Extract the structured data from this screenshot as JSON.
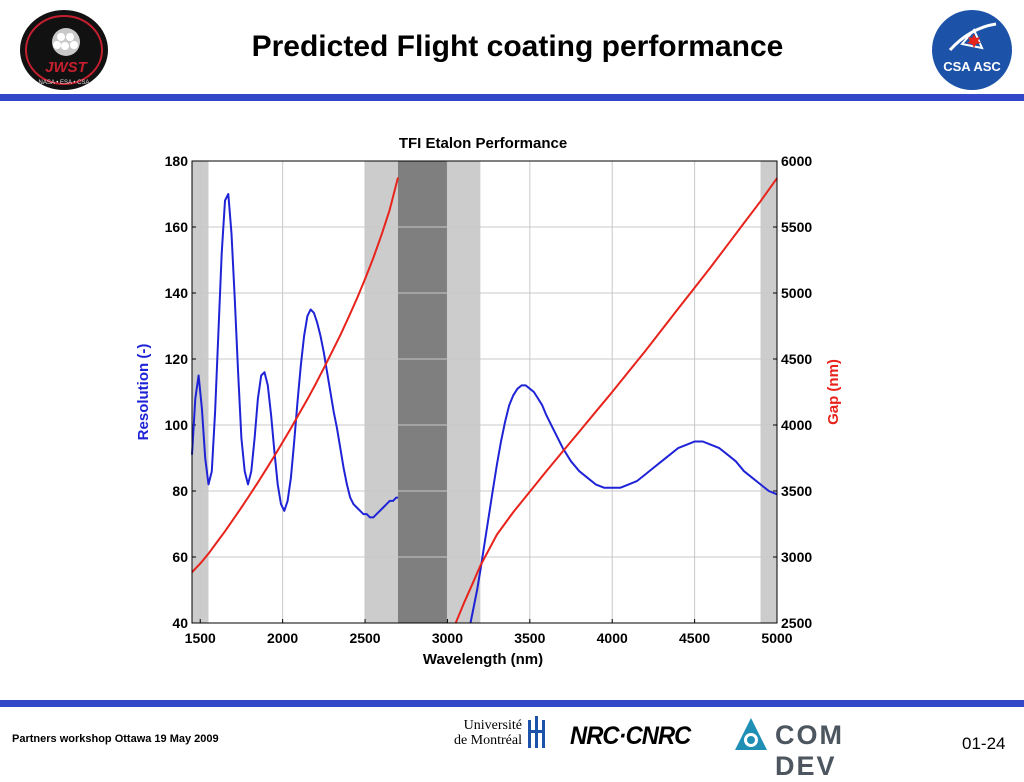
{
  "slide": {
    "title": "Predicted Flight coating performance",
    "footer": "Partners workshop Ottawa 19 May 2009",
    "page_number": "01-24"
  },
  "logos": {
    "jwst": "JWST",
    "jwst_ring": "James Webb Space Telescope",
    "jwst_agencies": "NASA • ESA • CSA",
    "csa": "CSA ASC",
    "udem": [
      "Université",
      "de Montréal"
    ],
    "nrc": "NRC·CNRC",
    "comdev": "COM DEV"
  },
  "colors": {
    "rule": "#3347c9",
    "resolution": "#1f23d6",
    "gap": "#e8231b",
    "band_light": "#cccccc",
    "band_dark": "#7f7f7f",
    "csa_blue": "#1c52a8",
    "jwst_red": "#c61f2f"
  },
  "chart_data": {
    "type": "line",
    "title": "TFI Etalon Performance",
    "xlabel": "Wavelength (nm)",
    "ylabel_left": "Resolution (-)",
    "ylabel_right": "Gap (nm)",
    "xlim": [
      1450,
      5000
    ],
    "ylim_left": [
      40,
      180
    ],
    "ylim_right": [
      2500,
      6000
    ],
    "x_ticks": [
      1500,
      2000,
      2500,
      3000,
      3500,
      4000,
      4500,
      5000
    ],
    "y_ticks_left": [
      40,
      60,
      80,
      100,
      120,
      140,
      160,
      180
    ],
    "y_ticks_right": [
      2500,
      3000,
      3500,
      4000,
      4500,
      5000,
      5500,
      6000
    ],
    "grid": true,
    "shaded_bands": [
      {
        "x": [
          1450,
          1550
        ],
        "shade": "light"
      },
      {
        "x": [
          2500,
          2700
        ],
        "shade": "light"
      },
      {
        "x": [
          2700,
          3000
        ],
        "shade": "dark"
      },
      {
        "x": [
          3000,
          3200
        ],
        "shade": "light"
      },
      {
        "x": [
          4900,
          5000
        ],
        "shade": "light"
      }
    ],
    "series": [
      {
        "axis": "left",
        "color": "#1f23d6",
        "x": [
          1450,
          1470,
          1490,
          1510,
          1530,
          1550,
          1570,
          1590,
          1610,
          1630,
          1650,
          1670,
          1690,
          1710,
          1730,
          1750,
          1770,
          1790,
          1810,
          1830,
          1850,
          1870,
          1890,
          1910,
          1930,
          1950,
          1970,
          1990,
          2010,
          2030,
          2050,
          2070,
          2090,
          2110,
          2130,
          2150,
          2170,
          2190,
          2210,
          2230,
          2250,
          2270,
          2290,
          2310,
          2330,
          2350,
          2370,
          2390,
          2410,
          2430,
          2450,
          2470,
          2490,
          2510,
          2530,
          2550,
          2570,
          2590,
          2610,
          2630,
          2650,
          2670,
          2690,
          2700
        ],
        "y": [
          91,
          108,
          115,
          105,
          90,
          82,
          86,
          104,
          128,
          152,
          168,
          170,
          158,
          138,
          116,
          96,
          86,
          82,
          86,
          96,
          108,
          115,
          116,
          112,
          103,
          92,
          82,
          76,
          74,
          77,
          84,
          95,
          107,
          118,
          127,
          133,
          135,
          134,
          131,
          127,
          122,
          116,
          110,
          104,
          99,
          93,
          87,
          82,
          78,
          76,
          75,
          74,
          73,
          73,
          72,
          72,
          73,
          74,
          75,
          76,
          77,
          77,
          78,
          78
        ]
      },
      {
        "axis": "left",
        "color": "#1f23d6",
        "x": [
          3140,
          3160,
          3180,
          3200,
          3225,
          3250,
          3275,
          3300,
          3325,
          3350,
          3375,
          3400,
          3425,
          3450,
          3475,
          3500,
          3525,
          3550,
          3575,
          3600,
          3650,
          3700,
          3750,
          3800,
          3850,
          3900,
          3950,
          4000,
          4050,
          4100,
          4150,
          4200,
          4250,
          4300,
          4350,
          4400,
          4450,
          4500,
          4550,
          4600,
          4650,
          4700,
          4750,
          4800,
          4850,
          4900,
          4950,
          5000
        ],
        "y": [
          40,
          45,
          50,
          56,
          64,
          72,
          80,
          88,
          95,
          101,
          106,
          109,
          111,
          112,
          112,
          111,
          110,
          108,
          106,
          103,
          98,
          93,
          89,
          86,
          84,
          82,
          81,
          81,
          81,
          82,
          83,
          85,
          87,
          89,
          91,
          93,
          94,
          95,
          95,
          94,
          93,
          91,
          89,
          86,
          84,
          82,
          80,
          79
        ]
      },
      {
        "axis": "right",
        "color": "#e8231b",
        "x": [
          1450,
          1500,
          1550,
          1600,
          1650,
          1700,
          1750,
          1800,
          1850,
          1900,
          1950,
          2000,
          2050,
          2100,
          2150,
          2200,
          2250,
          2300,
          2350,
          2400,
          2450,
          2500,
          2550,
          2600,
          2650,
          2700
        ],
        "y": [
          2885,
          2950,
          3025,
          3110,
          3195,
          3285,
          3375,
          3470,
          3565,
          3665,
          3765,
          3870,
          3975,
          4085,
          4195,
          4310,
          4430,
          4555,
          4680,
          4815,
          4955,
          5105,
          5265,
          5440,
          5630,
          5875
        ]
      },
      {
        "axis": "right",
        "color": "#e8231b",
        "x": [
          3050,
          3100,
          3150,
          3200,
          3300,
          3400,
          3500,
          3600,
          3700,
          3800,
          3900,
          4000,
          4100,
          4200,
          4300,
          4400,
          4500,
          4600,
          4700,
          4800,
          4900,
          5000
        ],
        "y": [
          2500,
          2650,
          2790,
          2935,
          3170,
          3340,
          3495,
          3650,
          3800,
          3950,
          4100,
          4250,
          4405,
          4560,
          4720,
          4880,
          5040,
          5200,
          5365,
          5530,
          5695,
          5870
        ]
      }
    ]
  }
}
